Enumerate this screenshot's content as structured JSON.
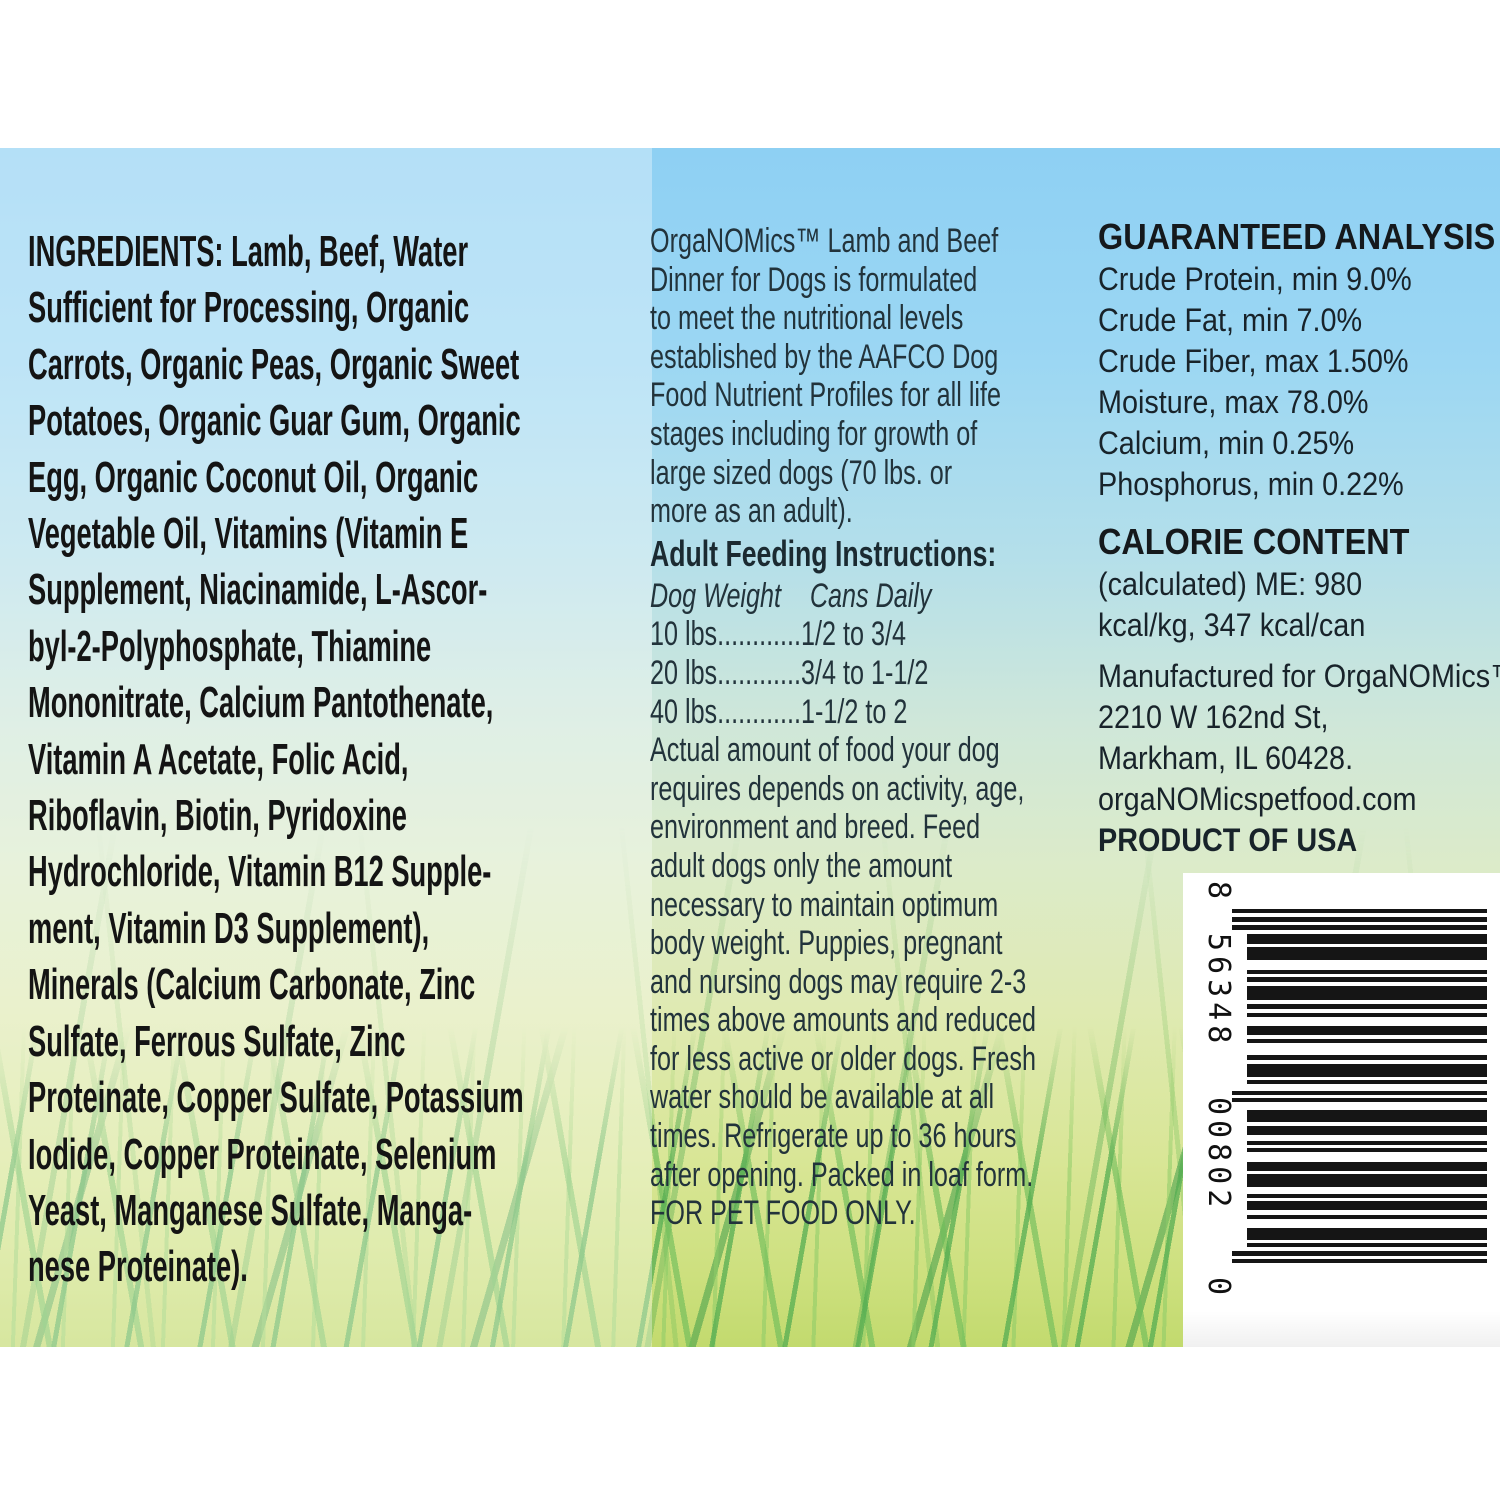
{
  "ingredients": {
    "lines": [
      "INGREDIENTS: Lamb, Beef, Water",
      "Sufficient for Processing, Organic",
      "Carrots, Organic Peas, Organic Sweet",
      "Potatoes, Organic Guar Gum, Organic",
      "Egg, Organic Coconut Oil, Organic",
      "Vegetable Oil, Vitamins (Vitamin E",
      "Supplement, Niacinamide, L-Ascor-",
      "byl-2-Polyphosphate, Thiamine",
      "Mononitrate, Calcium Pantothenate,",
      "Vitamin A Acetate, Folic Acid,",
      "Riboflavin, Biotin, Pyridoxine",
      "Hydrochloride, Vitamin B12 Supple-",
      "ment, Vitamin D3 Supplement),",
      "Minerals (Calcium Carbonate, Zinc",
      "Sulfate, Ferrous Sulfate, Zinc",
      "Proteinate, Copper Sulfate, Potassium",
      "Iodide, Copper Proteinate, Selenium",
      "Yeast, Manganese Sulfate, Manga-",
      "nese Proteinate)."
    ]
  },
  "middle": {
    "description_lines": [
      "OrgaNOMics™ Lamb and Beef",
      "Dinner for Dogs is formulated",
      "to meet the nutritional levels",
      "established by the AAFCO Dog",
      "Food Nutrient Profiles for all life",
      "stages including for growth of",
      "large sized dogs (70 lbs. or",
      "more as an adult)."
    ],
    "feeding_heading": "Adult Feeding Instructions:",
    "feeding_table": {
      "col1_header": "Dog Weight",
      "col2_header": "Cans Daily",
      "rows": [
        "10 lbs............1/2 to 3/4",
        "20 lbs............3/4 to 1-1/2",
        "40 lbs............1-1/2 to 2"
      ]
    },
    "notes_lines": [
      "Actual amount of food your dog",
      "requires depends on activity, age,",
      "environment and breed. Feed",
      "adult dogs only the amount",
      "necessary to maintain optimum",
      "body weight. Puppies, pregnant",
      "and nursing dogs may require 2-3",
      "times above amounts and reduced",
      "for less active or older dogs. Fresh",
      "water should be available at all",
      "times. Refrigerate up to 36 hours",
      "after opening. Packed in loaf form.",
      "FOR PET FOOD ONLY."
    ]
  },
  "analysis": {
    "heading": "GUARANTEED ANALYSIS",
    "rows": [
      "Crude Protein,  min 9.0%",
      "Crude Fat,  min 7.0%",
      "Crude Fiber,  max 1.50%",
      "Moisture,  max 78.0%",
      "Calcium,  min 0.25%",
      "Phosphorus,  min 0.22%"
    ]
  },
  "calories": {
    "heading": "CALORIE CONTENT",
    "lines": [
      "(calculated) ME: 980",
      "kcal/kg, 347 kcal/can"
    ]
  },
  "manufacturer": {
    "lines": [
      "Manufactured for OrgaNOMics™",
      "2210 W 162nd St,",
      "Markham, IL 60428.",
      "orgaNOMicspetfood.com"
    ],
    "origin": "PRODUCT OF USA"
  },
  "barcode": {
    "digit_left": "8",
    "digit_group1": "56348",
    "digit_group2": "00802",
    "digit_right": "0"
  },
  "colors": {
    "sky_blue": "#8ed0f3",
    "grass_green": "#54ad52",
    "ink": "#141414"
  }
}
